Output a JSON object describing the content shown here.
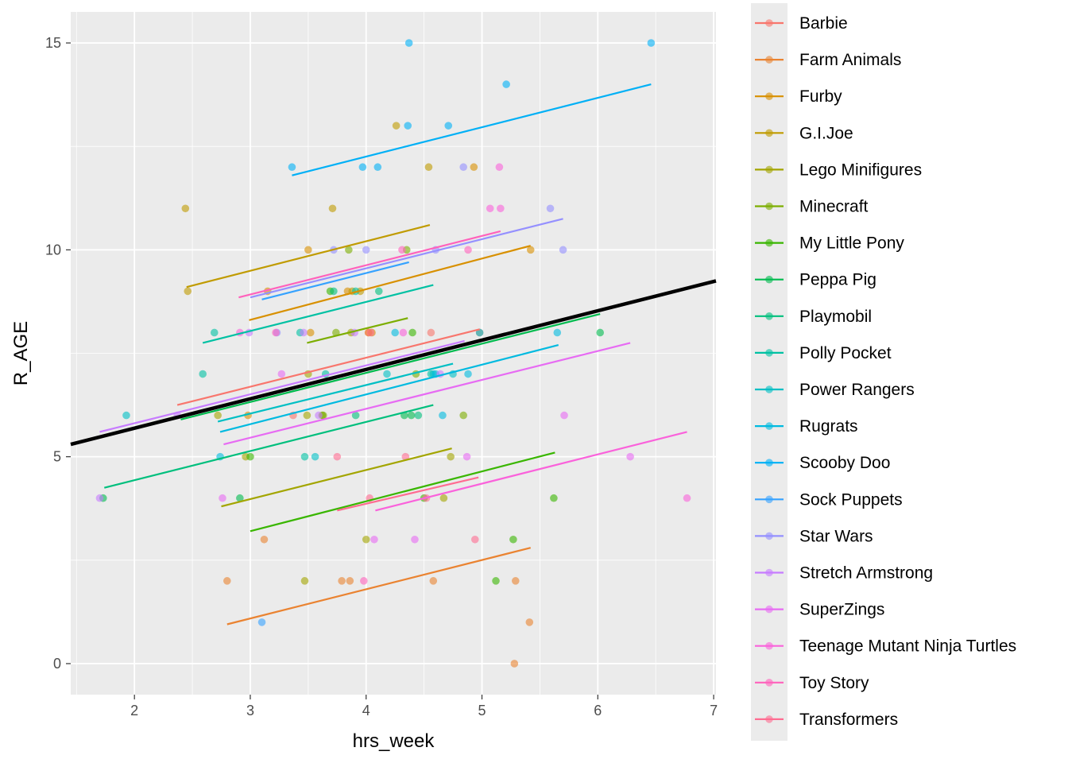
{
  "chart_data": {
    "type": "scatter",
    "xlabel": "hrs_week",
    "ylabel": "R_AGE",
    "xlim": [
      1.45,
      7.02
    ],
    "ylim": [
      -0.75,
      15.75
    ],
    "x_ticks": [
      2,
      3,
      4,
      5,
      6,
      7
    ],
    "y_ticks": [
      0,
      5,
      10,
      15
    ],
    "grid": true,
    "legend_position": "right",
    "overall_fit": {
      "color": "#000000",
      "x": [
        1.45,
        7.02
      ],
      "y": [
        5.3,
        9.25
      ]
    },
    "series": [
      {
        "name": "Barbie",
        "color": "#F8766D",
        "fit": {
          "x": [
            2.37,
            4.98
          ],
          "y": [
            6.25,
            8.08
          ]
        },
        "points": [
          [
            4.56,
            8.0
          ],
          [
            4.02,
            8.0
          ],
          [
            4.98,
            8.0
          ],
          [
            3.37,
            6.0
          ]
        ]
      },
      {
        "name": "Farm Animals",
        "color": "#EA8331",
        "fit": {
          "x": [
            2.8,
            5.42
          ],
          "y": [
            0.95,
            2.8
          ]
        },
        "points": [
          [
            3.12,
            3.0
          ],
          [
            2.8,
            2.0
          ],
          [
            3.79,
            2.0
          ],
          [
            3.86,
            2.0
          ],
          [
            4.58,
            2.0
          ],
          [
            5.28,
            0.0
          ],
          [
            5.29,
            2.0
          ],
          [
            5.41,
            1.0
          ],
          [
            4.02,
            8.0
          ]
        ]
      },
      {
        "name": "Furby",
        "color": "#D89000",
        "fit": {
          "x": [
            2.99,
            5.42
          ],
          "y": [
            8.3,
            10.1
          ]
        },
        "points": [
          [
            3.5,
            10.0
          ],
          [
            5.42,
            10.0
          ],
          [
            4.93,
            12.0
          ],
          [
            3.52,
            8.0
          ],
          [
            3.84,
            9.0
          ],
          [
            2.98,
            6.0
          ],
          [
            4.05,
            8.0
          ],
          [
            3.15,
            9.0
          ]
        ]
      },
      {
        "name": "G.I.Joe",
        "color": "#C09B00",
        "fit": {
          "x": [
            2.45,
            4.55
          ],
          "y": [
            9.1,
            10.6
          ]
        },
        "points": [
          [
            2.44,
            11.0
          ],
          [
            2.46,
            9.0
          ],
          [
            4.26,
            13.0
          ],
          [
            4.54,
            12.0
          ],
          [
            3.71,
            11.0
          ],
          [
            3.88,
            9.0
          ],
          [
            3.95,
            9.0
          ]
        ]
      },
      {
        "name": "Lego Minifigures",
        "color": "#A3A500",
        "fit": {
          "x": [
            2.75,
            4.74
          ],
          "y": [
            3.8,
            5.2
          ]
        },
        "points": [
          [
            2.72,
            6.0
          ],
          [
            2.96,
            5.0
          ],
          [
            3.47,
            2.0
          ],
          [
            4.0,
            3.0
          ],
          [
            4.67,
            4.0
          ],
          [
            4.73,
            5.0
          ],
          [
            3.49,
            6.0
          ],
          [
            3.5,
            7.0
          ],
          [
            3.87,
            8.0
          ]
        ]
      },
      {
        "name": "Minecraft",
        "color": "#7CAE00",
        "fit": {
          "x": [
            3.49,
            4.36
          ],
          "y": [
            7.75,
            8.35
          ]
        },
        "points": [
          [
            3.74,
            8.0
          ],
          [
            3.85,
            10.0
          ],
          [
            4.35,
            10.0
          ],
          [
            3.63,
            6.0
          ],
          [
            4.43,
            7.0
          ],
          [
            4.84,
            6.0
          ],
          [
            3.62,
            6.0
          ]
        ]
      },
      {
        "name": "My Little Pony",
        "color": "#39B600",
        "fit": {
          "x": [
            3.0,
            5.63
          ],
          "y": [
            3.2,
            5.1
          ]
        },
        "points": [
          [
            3.0,
            5.0
          ],
          [
            5.27,
            3.0
          ],
          [
            5.62,
            4.0
          ],
          [
            5.12,
            2.0
          ],
          [
            4.5,
            4.0
          ],
          [
            4.4,
            8.0
          ],
          [
            3.69,
            9.0
          ]
        ]
      },
      {
        "name": "Peppa Pig",
        "color": "#00BB4E",
        "fit": {
          "x": [
            2.4,
            6.02
          ],
          "y": [
            5.9,
            8.45
          ]
        },
        "points": [
          [
            6.02,
            8.0
          ],
          [
            4.33,
            6.0
          ],
          [
            4.39,
            6.0
          ],
          [
            2.91,
            4.0
          ],
          [
            1.73,
            4.0
          ]
        ]
      },
      {
        "name": "Playmobil",
        "color": "#00BF7D",
        "fit": {
          "x": [
            1.74,
            4.58
          ],
          "y": [
            4.25,
            6.25
          ]
        },
        "points": [
          [
            4.45,
            6.0
          ],
          [
            3.91,
            6.0
          ],
          [
            3.72,
            9.0
          ],
          [
            4.11,
            9.0
          ]
        ]
      },
      {
        "name": "Polly Pocket",
        "color": "#00C1A3",
        "fit": {
          "x": [
            2.59,
            4.58
          ],
          "y": [
            7.75,
            9.15
          ]
        },
        "points": [
          [
            2.59,
            7.0
          ],
          [
            2.69,
            8.0
          ],
          [
            3.43,
            8.0
          ],
          [
            3.65,
            7.0
          ],
          [
            3.47,
            5.0
          ],
          [
            4.56,
            7.0
          ],
          [
            3.91,
            9.0
          ]
        ]
      },
      {
        "name": "Power Rangers",
        "color": "#00BFC4",
        "fit": {
          "x": [
            2.72,
            4.75
          ],
          "y": [
            5.85,
            7.25
          ]
        },
        "points": [
          [
            1.93,
            6.0
          ],
          [
            3.56,
            5.0
          ],
          [
            4.18,
            7.0
          ],
          [
            4.75,
            7.0
          ],
          [
            4.58,
            7.0
          ],
          [
            4.98,
            8.0
          ]
        ]
      },
      {
        "name": "Rugrats",
        "color": "#00BAE0",
        "fit": {
          "x": [
            2.74,
            5.66
          ],
          "y": [
            5.6,
            7.7
          ]
        },
        "points": [
          [
            2.74,
            5.0
          ],
          [
            4.66,
            6.0
          ],
          [
            4.88,
            7.0
          ],
          [
            5.65,
            8.0
          ],
          [
            4.6,
            7.0
          ],
          [
            4.25,
            8.0
          ]
        ]
      },
      {
        "name": "Scooby Doo",
        "color": "#00B0F6",
        "fit": {
          "x": [
            3.36,
            6.46
          ],
          "y": [
            11.8,
            14.0
          ]
        },
        "points": [
          [
            3.36,
            12.0
          ],
          [
            3.97,
            12.0
          ],
          [
            4.1,
            12.0
          ],
          [
            4.36,
            13.0
          ],
          [
            4.71,
            13.0
          ],
          [
            5.21,
            14.0
          ],
          [
            6.46,
            15.0
          ],
          [
            4.37,
            15.0
          ]
        ]
      },
      {
        "name": "Sock Puppets",
        "color": "#35A2FF",
        "fit": {
          "x": [
            3.1,
            4.37
          ],
          "y": [
            8.8,
            9.7
          ]
        },
        "points": [
          [
            3.1,
            1.0
          ]
        ]
      },
      {
        "name": "Star Wars",
        "color": "#9590FF",
        "fit": {
          "x": [
            3.0,
            5.7
          ],
          "y": [
            8.85,
            10.75
          ]
        },
        "points": [
          [
            4.0,
            10.0
          ],
          [
            5.59,
            11.0
          ],
          [
            5.7,
            10.0
          ],
          [
            3.72,
            10.0
          ],
          [
            4.84,
            12.0
          ],
          [
            3.23,
            8.0
          ],
          [
            4.6,
            10.0
          ]
        ]
      },
      {
        "name": "Stretch Armstrong",
        "color": "#C77CFF",
        "fit": {
          "x": [
            1.7,
            4.85
          ],
          "y": [
            5.6,
            7.8
          ]
        },
        "points": [
          [
            1.7,
            4.0
          ],
          [
            2.37,
            6.0
          ],
          [
            3.59,
            6.0
          ],
          [
            3.46,
            8.0
          ],
          [
            3.9,
            8.0
          ],
          [
            4.64,
            7.0
          ],
          [
            2.99,
            8.0
          ]
        ]
      },
      {
        "name": "SuperZings",
        "color": "#E76BF3",
        "fit": {
          "x": [
            2.77,
            6.28
          ],
          "y": [
            5.3,
            7.75
          ]
        },
        "points": [
          [
            3.27,
            7.0
          ],
          [
            5.71,
            6.0
          ],
          [
            6.28,
            5.0
          ],
          [
            4.87,
            5.0
          ],
          [
            4.42,
            3.0
          ],
          [
            4.07,
            3.0
          ],
          [
            2.76,
            4.0
          ]
        ]
      },
      {
        "name": "Teenage Mutant Ninja Turtles",
        "color": "#FA62DB",
        "fit": {
          "x": [
            4.08,
            6.77
          ],
          "y": [
            3.7,
            5.6
          ]
        },
        "points": [
          [
            6.77,
            4.0
          ],
          [
            5.15,
            12.0
          ],
          [
            5.07,
            11.0
          ],
          [
            5.16,
            11.0
          ],
          [
            4.32,
            8.0
          ],
          [
            2.91,
            8.0
          ]
        ]
      },
      {
        "name": "Toy Story",
        "color": "#FF62BC",
        "fit": {
          "x": [
            2.9,
            5.16
          ],
          "y": [
            8.85,
            10.45
          ]
        },
        "points": [
          [
            4.88,
            10.0
          ],
          [
            4.31,
            10.0
          ],
          [
            3.98,
            2.0
          ],
          [
            3.22,
            8.0
          ]
        ]
      },
      {
        "name": "Transformers",
        "color": "#FF6C91",
        "fit": {
          "x": [
            3.75,
            4.97
          ],
          "y": [
            3.7,
            4.5
          ]
        },
        "points": [
          [
            3.75,
            5.0
          ],
          [
            4.34,
            5.0
          ],
          [
            4.94,
            3.0
          ],
          [
            4.03,
            4.0
          ],
          [
            4.52,
            4.0
          ],
          [
            4.04,
            8.0
          ]
        ]
      }
    ]
  }
}
